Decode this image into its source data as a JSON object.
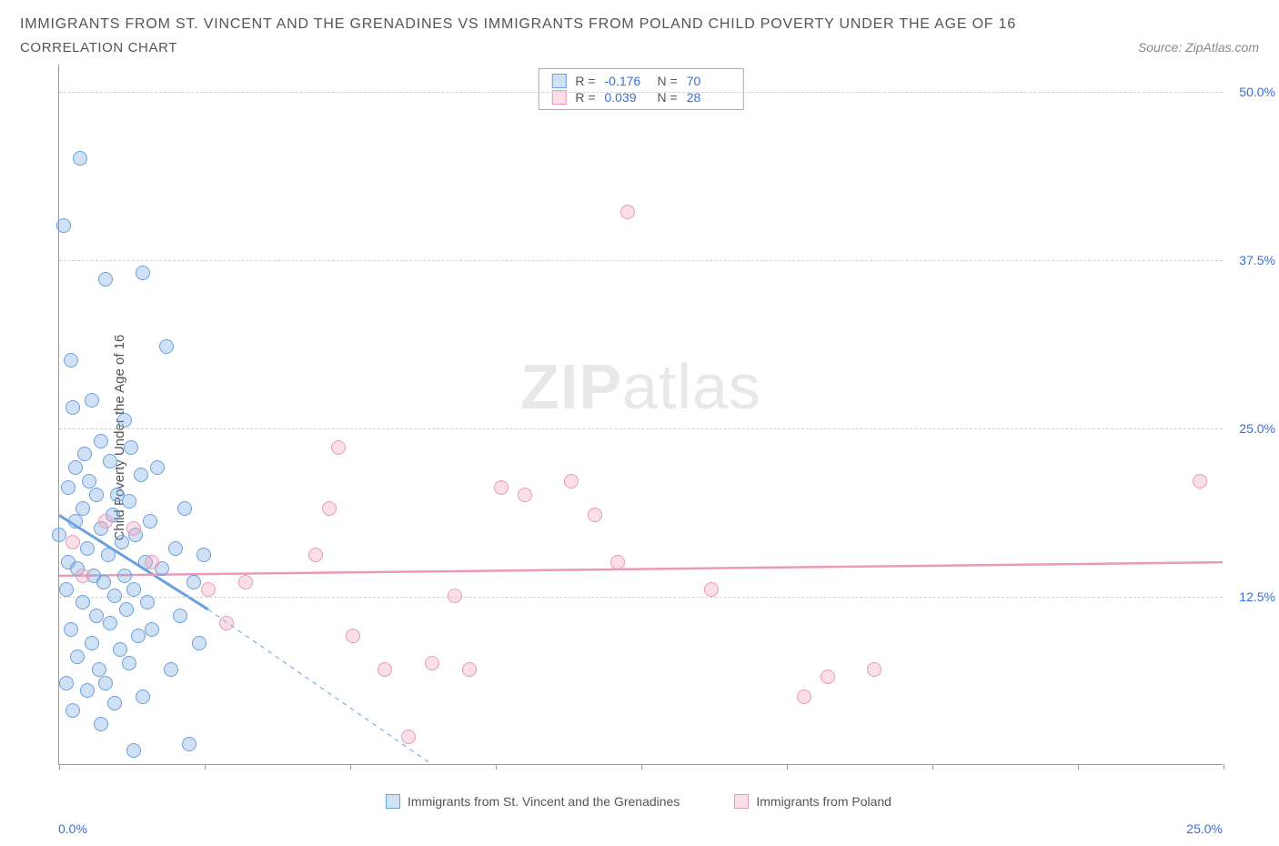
{
  "title": "IMMIGRANTS FROM ST. VINCENT AND THE GRENADINES VS IMMIGRANTS FROM POLAND CHILD POVERTY UNDER THE AGE OF 16",
  "subtitle": "CORRELATION CHART",
  "source": "Source: ZipAtlas.com",
  "y_axis_label": "Child Poverty Under the Age of 16",
  "watermark_a": "ZIP",
  "watermark_b": "atlas",
  "chart": {
    "type": "scatter",
    "xlim": [
      0,
      25
    ],
    "ylim": [
      0,
      52
    ],
    "xticks_pct": [
      0,
      12.5,
      25,
      37.5,
      50,
      62.5,
      75,
      87.5,
      100
    ],
    "yticks": [
      {
        "v": 12.5,
        "label": "12.5%"
      },
      {
        "v": 25.0,
        "label": "25.0%"
      },
      {
        "v": 37.5,
        "label": "37.5%"
      },
      {
        "v": 50.0,
        "label": "50.0%"
      }
    ],
    "x_min_label": "0.0%",
    "x_max_label": "25.0%",
    "grid_color": "#d0d0d0",
    "axis_color": "#999999",
    "tick_label_color": "#3b6fd6",
    "series": [
      {
        "key": "svg",
        "label": "Immigrants from St. Vincent and the Grenadines",
        "fill": "rgba(120,170,230,0.35)",
        "stroke": "#6aa0de",
        "R": "-0.176",
        "N": "70",
        "trend": {
          "x1": 0,
          "y1": 18.5,
          "x2": 3.2,
          "y2": 11.5,
          "dash_to_x": 8.0,
          "dash_to_y": 0
        },
        "points": [
          [
            0.0,
            17.0
          ],
          [
            0.1,
            40.0
          ],
          [
            0.15,
            6.0
          ],
          [
            0.15,
            13.0
          ],
          [
            0.2,
            20.5
          ],
          [
            0.2,
            15.0
          ],
          [
            0.25,
            30.0
          ],
          [
            0.25,
            10.0
          ],
          [
            0.3,
            26.5
          ],
          [
            0.3,
            4.0
          ],
          [
            0.35,
            22.0
          ],
          [
            0.35,
            18.0
          ],
          [
            0.4,
            14.5
          ],
          [
            0.4,
            8.0
          ],
          [
            0.45,
            45.0
          ],
          [
            0.5,
            19.0
          ],
          [
            0.5,
            12.0
          ],
          [
            0.55,
            23.0
          ],
          [
            0.6,
            5.5
          ],
          [
            0.6,
            16.0
          ],
          [
            0.65,
            21.0
          ],
          [
            0.7,
            9.0
          ],
          [
            0.7,
            27.0
          ],
          [
            0.75,
            14.0
          ],
          [
            0.8,
            11.0
          ],
          [
            0.8,
            20.0
          ],
          [
            0.85,
            7.0
          ],
          [
            0.9,
            17.5
          ],
          [
            0.9,
            24.0
          ],
          [
            0.95,
            13.5
          ],
          [
            1.0,
            36.0
          ],
          [
            1.0,
            6.0
          ],
          [
            1.05,
            15.5
          ],
          [
            1.1,
            22.5
          ],
          [
            1.1,
            10.5
          ],
          [
            1.15,
            18.5
          ],
          [
            1.2,
            4.5
          ],
          [
            1.2,
            12.5
          ],
          [
            1.25,
            20.0
          ],
          [
            1.3,
            8.5
          ],
          [
            1.35,
            16.5
          ],
          [
            1.4,
            14.0
          ],
          [
            1.4,
            25.5
          ],
          [
            1.45,
            11.5
          ],
          [
            1.5,
            19.5
          ],
          [
            1.5,
            7.5
          ],
          [
            1.55,
            23.5
          ],
          [
            1.6,
            13.0
          ],
          [
            1.65,
            17.0
          ],
          [
            1.7,
            9.5
          ],
          [
            1.75,
            21.5
          ],
          [
            1.8,
            36.5
          ],
          [
            1.8,
            5.0
          ],
          [
            1.85,
            15.0
          ],
          [
            1.9,
            12.0
          ],
          [
            1.95,
            18.0
          ],
          [
            2.0,
            10.0
          ],
          [
            2.1,
            22.0
          ],
          [
            2.2,
            14.5
          ],
          [
            2.3,
            31.0
          ],
          [
            2.4,
            7.0
          ],
          [
            2.5,
            16.0
          ],
          [
            2.6,
            11.0
          ],
          [
            2.7,
            19.0
          ],
          [
            2.8,
            1.5
          ],
          [
            2.9,
            13.5
          ],
          [
            3.0,
            9.0
          ],
          [
            3.1,
            15.5
          ],
          [
            1.6,
            1.0
          ],
          [
            0.9,
            3.0
          ]
        ]
      },
      {
        "key": "pol",
        "label": "Immigrants from Poland",
        "fill": "rgba(240,160,190,0.35)",
        "stroke": "#e89ab8",
        "R": "0.039",
        "N": "28",
        "trend": {
          "x1": 0,
          "y1": 14.0,
          "x2": 25,
          "y2": 15.0
        },
        "points": [
          [
            0.3,
            16.5
          ],
          [
            0.5,
            14.0
          ],
          [
            1.0,
            18.0
          ],
          [
            1.6,
            17.5
          ],
          [
            2.0,
            15.0
          ],
          [
            3.2,
            13.0
          ],
          [
            3.6,
            10.5
          ],
          [
            4.0,
            13.5
          ],
          [
            5.5,
            15.5
          ],
          [
            5.8,
            19.0
          ],
          [
            6.0,
            23.5
          ],
          [
            6.3,
            9.5
          ],
          [
            7.0,
            7.0
          ],
          [
            7.5,
            2.0
          ],
          [
            8.0,
            7.5
          ],
          [
            8.5,
            12.5
          ],
          [
            8.8,
            7.0
          ],
          [
            10.0,
            20.0
          ],
          [
            11.0,
            21.0
          ],
          [
            11.5,
            18.5
          ],
          [
            12.0,
            15.0
          ],
          [
            12.2,
            41.0
          ],
          [
            14.0,
            13.0
          ],
          [
            16.0,
            5.0
          ],
          [
            16.5,
            6.5
          ],
          [
            17.5,
            7.0
          ],
          [
            24.5,
            21.0
          ],
          [
            9.5,
            20.5
          ]
        ]
      }
    ]
  },
  "stat_box": {
    "r_label": "R =",
    "n_label": "N ="
  }
}
